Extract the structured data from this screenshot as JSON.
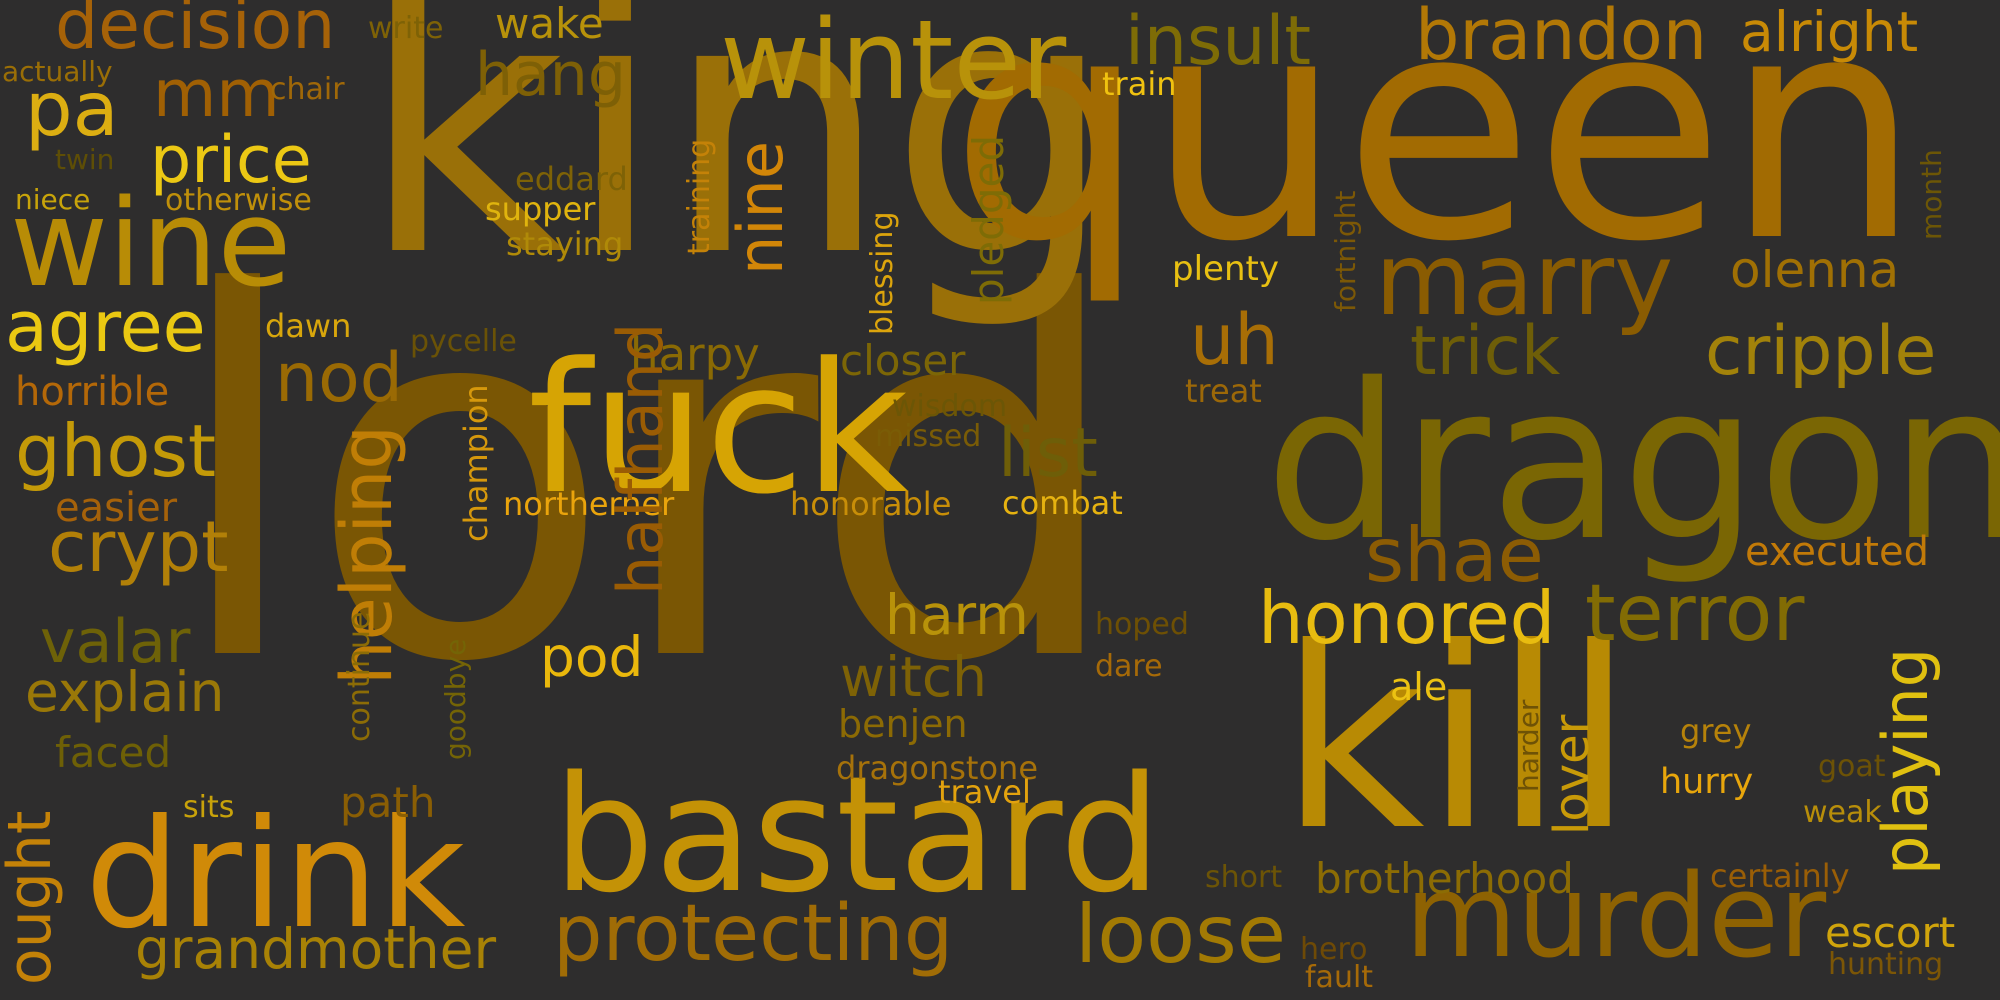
{
  "background": "#2e2d2d",
  "words": [
    {
      "text": "lord",
      "color": "#7a5604"
    },
    {
      "text": "king",
      "color": "#9a7008"
    },
    {
      "text": "queen",
      "color": "#a26b02"
    },
    {
      "text": "dragon",
      "color": "#7a6604"
    },
    {
      "text": "kill",
      "color": "#b88a04"
    },
    {
      "text": "fuck",
      "color": "#d6a404"
    },
    {
      "text": "bastard",
      "color": "#c49206"
    },
    {
      "text": "drink",
      "color": "#d08a08"
    },
    {
      "text": "murder",
      "color": "#8e6202"
    },
    {
      "text": "winter",
      "color": "#b8920a"
    },
    {
      "text": "wine",
      "color": "#b88c06"
    },
    {
      "text": "marry",
      "color": "#8a5c02"
    },
    {
      "text": "protecting",
      "color": "#a06c06"
    },
    {
      "text": "loose",
      "color": "#a27a04"
    },
    {
      "text": "honored",
      "color": "#e8bc10"
    },
    {
      "text": "terror",
      "color": "#826c04"
    },
    {
      "text": "brandon",
      "color": "#b27806"
    },
    {
      "text": "alright",
      "color": "#c88a06"
    },
    {
      "text": "insult",
      "color": "#7e6c06"
    },
    {
      "text": "decision",
      "color": "#a66208"
    },
    {
      "text": "shae",
      "color": "#8c5c04"
    },
    {
      "text": "cripple",
      "color": "#a2820a"
    },
    {
      "text": "olenna",
      "color": "#a07004"
    },
    {
      "text": "trick",
      "color": "#6e5e08"
    },
    {
      "text": "uh",
      "color": "#a86e06"
    },
    {
      "text": "grandmother",
      "color": "#a88206"
    },
    {
      "text": "helping",
      "color": "#c07e06"
    },
    {
      "text": "halfhand",
      "color": "#9a5c04"
    },
    {
      "text": "playing",
      "color": "#e0c010"
    },
    {
      "text": "pa",
      "color": "#dcae12"
    },
    {
      "text": "mm",
      "color": "#a06004"
    },
    {
      "text": "price",
      "color": "#ecc814"
    },
    {
      "text": "agree",
      "color": "#eac812"
    },
    {
      "text": "ghost",
      "color": "#c49a08"
    },
    {
      "text": "nod",
      "color": "#9a6a04"
    },
    {
      "text": "crypt",
      "color": "#b28008"
    },
    {
      "text": "valar",
      "color": "#6e6208"
    },
    {
      "text": "explain",
      "color": "#9a7808"
    },
    {
      "text": "hang",
      "color": "#7e6006"
    },
    {
      "text": "list",
      "color": "#6e5e08"
    },
    {
      "text": "harm",
      "color": "#b8920a"
    },
    {
      "text": "witch",
      "color": "#7e6206"
    },
    {
      "text": "pod",
      "color": "#eab80c"
    },
    {
      "text": "ought",
      "color": "#c48208"
    },
    {
      "text": "nine",
      "color": "#d28608"
    },
    {
      "text": "harpy",
      "color": "#8a6a04"
    },
    {
      "text": "closer",
      "color": "#7c6606"
    },
    {
      "text": "lover",
      "color": "#c89a08"
    },
    {
      "text": "escort",
      "color": "#d0a40c"
    },
    {
      "text": "brotherhood",
      "color": "#8c6c04"
    },
    {
      "text": "executed",
      "color": "#c27a08"
    },
    {
      "text": "ale",
      "color": "#ecc212"
    },
    {
      "text": "benjen",
      "color": "#8c6a04"
    },
    {
      "text": "pledged",
      "color": "#7e6c06"
    },
    {
      "text": "horrible",
      "color": "#b46808"
    },
    {
      "text": "easier",
      "color": "#a6620a"
    },
    {
      "text": "faced",
      "color": "#6e6006"
    },
    {
      "text": "path",
      "color": "#8a5e04"
    },
    {
      "text": "plenty",
      "color": "#e8c012"
    },
    {
      "text": "hurry",
      "color": "#e8a60c"
    },
    {
      "text": "wake",
      "color": "#b8920a"
    },
    {
      "text": "northerner",
      "color": "#eaa40c"
    },
    {
      "text": "honorable",
      "color": "#c88e08"
    },
    {
      "text": "combat",
      "color": "#e6b210"
    },
    {
      "text": "dragonstone",
      "color": "#a6720a"
    },
    {
      "text": "champion",
      "color": "#d6980c"
    },
    {
      "text": "blessing",
      "color": "#dca40c"
    },
    {
      "text": "training",
      "color": "#c48208"
    },
    {
      "text": "eddard",
      "color": "#7e6206"
    },
    {
      "text": "supper",
      "color": "#e0b40e"
    },
    {
      "text": "staying",
      "color": "#b08a08"
    },
    {
      "text": "otherwise",
      "color": "#c0900a"
    },
    {
      "text": "niece",
      "color": "#c8a40a"
    },
    {
      "text": "chair",
      "color": "#a06808"
    },
    {
      "text": "write",
      "color": "#7e6206"
    },
    {
      "text": "actually",
      "color": "#9a6e06"
    },
    {
      "text": "twin",
      "color": "#5e4e06"
    },
    {
      "text": "dawn",
      "color": "#d8a60c"
    },
    {
      "text": "pycelle",
      "color": "#6a5206"
    },
    {
      "text": "wisdom",
      "color": "#6c5606"
    },
    {
      "text": "missed",
      "color": "#7a5c06"
    },
    {
      "text": "continue",
      "color": "#8c6c06"
    },
    {
      "text": "goodbye",
      "color": "#746406"
    },
    {
      "text": "train",
      "color": "#f0c210"
    },
    {
      "text": "fortnight",
      "color": "#7c5806"
    },
    {
      "text": "month",
      "color": "#6c5606"
    },
    {
      "text": "treat",
      "color": "#9c6808"
    },
    {
      "text": "hoped",
      "color": "#6e5004"
    },
    {
      "text": "dare",
      "color": "#a66a08"
    },
    {
      "text": "travel",
      "color": "#e2a20e"
    },
    {
      "text": "sits",
      "color": "#c8a20a"
    },
    {
      "text": "grey",
      "color": "#b6820a"
    },
    {
      "text": "goat",
      "color": "#6c5206"
    },
    {
      "text": "weak",
      "color": "#b88e0a"
    },
    {
      "text": "harder",
      "color": "#6e5206"
    },
    {
      "text": "short",
      "color": "#6c5406"
    },
    {
      "text": "certainly",
      "color": "#9a5e06"
    },
    {
      "text": "hero",
      "color": "#6e4a06"
    },
    {
      "text": "fault",
      "color": "#a66a08"
    },
    {
      "text": "hunting",
      "color": "#7c5606"
    }
  ]
}
